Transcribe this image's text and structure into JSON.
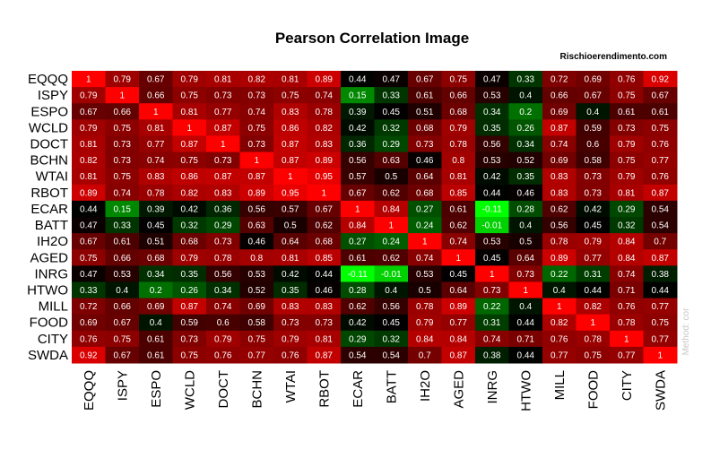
{
  "chart_data": {
    "type": "heatmap",
    "title": "Pearson Correlation  Image",
    "source_label": "Rischioerendimento.com",
    "method_label": "Method: cor",
    "labels": [
      "EQQQ",
      "ISPY",
      "ESPO",
      "WCLD",
      "DOCT",
      "BCHN",
      "WTAI",
      "RBOT",
      "ECAR",
      "BATT",
      "IH2O",
      "AGED",
      "INRG",
      "HTWO",
      "MILL",
      "FOOD",
      "CITY",
      "SWDA"
    ],
    "colors": {
      "high": "#ff0000",
      "mid": "#000000",
      "low": "#00ff00"
    },
    "value_range": [
      -0.11,
      1
    ],
    "matrix": [
      [
        "1",
        "0.79",
        "0.67",
        "0.79",
        "0.81",
        "0.82",
        "0.81",
        "0.89",
        "0.44",
        "0.47",
        "0.67",
        "0.75",
        "0.47",
        "0.33",
        "0.72",
        "0.69",
        "0.76",
        "0.92"
      ],
      [
        "0.79",
        "1",
        "0.66",
        "0.75",
        "0.73",
        "0.73",
        "0.75",
        "0.74",
        "0.15",
        "0.33",
        "0.61",
        "0.66",
        "0.53",
        "0.4",
        "0.66",
        "0.67",
        "0.75",
        "0.67"
      ],
      [
        "0.67",
        "0.66",
        "1",
        "0.81",
        "0.77",
        "0.74",
        "0.83",
        "0.78",
        "0.39",
        "0.45",
        "0.51",
        "0.68",
        "0.34",
        "0.2",
        "0.69",
        "0.4",
        "0.61",
        "0.61"
      ],
      [
        "0.79",
        "0.75",
        "0.81",
        "1",
        "0.87",
        "0.75",
        "0.86",
        "0.82",
        "0.42",
        "0.32",
        "0.68",
        "0.79",
        "0.35",
        "0.26",
        "0.87",
        "0.59",
        "0.73",
        "0.75"
      ],
      [
        "0.81",
        "0.73",
        "0.77",
        "0.87",
        "1",
        "0.73",
        "0.87",
        "0.83",
        "0.36",
        "0.29",
        "0.73",
        "0.78",
        "0.56",
        "0.34",
        "0.74",
        "0.6",
        "0.79",
        "0.76"
      ],
      [
        "0.82",
        "0.73",
        "0.74",
        "0.75",
        "0.73",
        "1",
        "0.87",
        "0.89",
        "0.56",
        "0.63",
        "0.46",
        "0.8",
        "0.53",
        "0.52",
        "0.69",
        "0.58",
        "0.75",
        "0.77"
      ],
      [
        "0.81",
        "0.75",
        "0.83",
        "0.86",
        "0.87",
        "0.87",
        "1",
        "0.95",
        "0.57",
        "0.5",
        "0.64",
        "0.81",
        "0.42",
        "0.35",
        "0.83",
        "0.73",
        "0.79",
        "0.76"
      ],
      [
        "0.89",
        "0.74",
        "0.78",
        "0.82",
        "0.83",
        "0.89",
        "0.95",
        "1",
        "0.67",
        "0.62",
        "0.68",
        "0.85",
        "0.44",
        "0.46",
        "0.83",
        "0.73",
        "0.81",
        "0.87"
      ],
      [
        "0.44",
        "0.15",
        "0.39",
        "0.42",
        "0.36",
        "0.56",
        "0.57",
        "0.67",
        "1",
        "0.84",
        "0.27",
        "0.61",
        "-0.11",
        "0.28",
        "0.62",
        "0.42",
        "0.29",
        "0.54"
      ],
      [
        "0.47",
        "0.33",
        "0.45",
        "0.32",
        "0.29",
        "0.63",
        "0.5",
        "0.62",
        "0.84",
        "1",
        "0.24",
        "0.62",
        "-0.01",
        "0.4",
        "0.56",
        "0.45",
        "0.32",
        "0.54"
      ],
      [
        "0.67",
        "0.61",
        "0.51",
        "0.68",
        "0.73",
        "0.46",
        "0.64",
        "0.68",
        "0.27",
        "0.24",
        "1",
        "0.74",
        "0.53",
        "0.5",
        "0.78",
        "0.79",
        "0.84",
        "0.7"
      ],
      [
        "0.75",
        "0.66",
        "0.68",
        "0.79",
        "0.78",
        "0.8",
        "0.81",
        "0.85",
        "0.61",
        "0.62",
        "0.74",
        "1",
        "0.45",
        "0.64",
        "0.89",
        "0.77",
        "0.84",
        "0.87"
      ],
      [
        "0.47",
        "0.53",
        "0.34",
        "0.35",
        "0.56",
        "0.53",
        "0.42",
        "0.44",
        "-0.11",
        "-0.01",
        "0.53",
        "0.45",
        "1",
        "0.73",
        "0.22",
        "0.31",
        "0.74",
        "0.38"
      ],
      [
        "0.33",
        "0.4",
        "0.2",
        "0.26",
        "0.34",
        "0.52",
        "0.35",
        "0.46",
        "0.28",
        "0.4",
        "0.5",
        "0.64",
        "0.73",
        "1",
        "0.4",
        "0.44",
        "0.71",
        "0.44"
      ],
      [
        "0.72",
        "0.66",
        "0.69",
        "0.87",
        "0.74",
        "0.69",
        "0.83",
        "0.83",
        "0.62",
        "0.56",
        "0.78",
        "0.89",
        "0.22",
        "0.4",
        "1",
        "0.82",
        "0.76",
        "0.77"
      ],
      [
        "0.69",
        "0.67",
        "0.4",
        "0.59",
        "0.6",
        "0.58",
        "0.73",
        "0.73",
        "0.42",
        "0.45",
        "0.79",
        "0.77",
        "0.31",
        "0.44",
        "0.82",
        "1",
        "0.78",
        "0.75"
      ],
      [
        "0.76",
        "0.75",
        "0.61",
        "0.73",
        "0.79",
        "0.75",
        "0.79",
        "0.81",
        "0.29",
        "0.32",
        "0.84",
        "0.84",
        "0.74",
        "0.71",
        "0.76",
        "0.78",
        "1",
        "0.77"
      ],
      [
        "0.92",
        "0.67",
        "0.61",
        "0.75",
        "0.76",
        "0.77",
        "0.76",
        "0.87",
        "0.54",
        "0.54",
        "0.7",
        "0.87",
        "0.38",
        "0.44",
        "0.77",
        "0.75",
        "0.77",
        "1"
      ]
    ]
  }
}
